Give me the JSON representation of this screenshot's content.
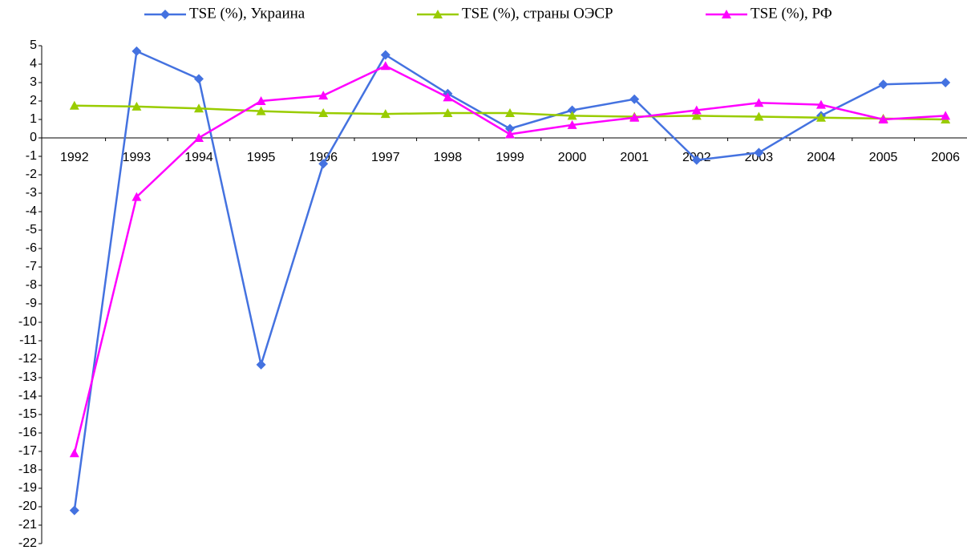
{
  "chart_data": {
    "type": "line",
    "categories": [
      "1992",
      "1993",
      "1994",
      "1995",
      "1996",
      "1997",
      "1998",
      "1999",
      "2000",
      "2001",
      "2002",
      "2003",
      "2004",
      "2005",
      "2006"
    ],
    "series": [
      {
        "name": "TSE (%), Украина",
        "color": "#4472e0",
        "marker": "diamond",
        "values": [
          -20.2,
          4.7,
          3.2,
          -12.3,
          -1.4,
          4.5,
          2.4,
          0.5,
          1.5,
          2.1,
          -1.2,
          -0.8,
          1.2,
          2.9,
          3.0
        ]
      },
      {
        "name": "TSE (%), страны ОЭСР",
        "color": "#99cc00",
        "marker": "triangle",
        "values": [
          1.75,
          1.7,
          1.6,
          1.45,
          1.35,
          1.3,
          1.35,
          1.35,
          1.2,
          1.15,
          1.2,
          1.15,
          1.1,
          1.05,
          1.0
        ]
      },
      {
        "name": "TSE (%), РФ",
        "color": "#ff00ff",
        "marker": "triangle",
        "values": [
          -17.1,
          -3.2,
          0,
          2.0,
          2.3,
          3.9,
          2.2,
          0.2,
          0.7,
          1.1,
          1.5,
          1.9,
          1.8,
          1.0,
          1.2
        ]
      }
    ],
    "ylim": [
      -22,
      5
    ],
    "yticks": [
      -22,
      -21,
      -20,
      -19,
      -18,
      -17,
      -16,
      -15,
      -14,
      -13,
      -12,
      -11,
      -10,
      -9,
      -8,
      -7,
      -6,
      -5,
      -4,
      -3,
      -2,
      -1,
      0,
      1,
      2,
      3,
      4,
      5
    ],
    "legend": "top"
  }
}
